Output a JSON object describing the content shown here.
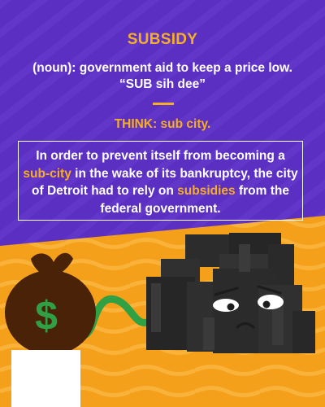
{
  "term": "SUBSIDY",
  "definition_line1": "(noun): government aid to keep a price low.",
  "definition_line2": "“SUB sih dee”",
  "think": "THINK: sub city.",
  "example": {
    "part1": "In order to prevent itself from becoming a ",
    "highlight1": "sub-city",
    "part2": " in the wake of its bankruptcy, the city of Detroit had to rely on ",
    "highlight2": "subsidies",
    "part3": " from the federal government."
  },
  "money_bag_symbol": "$",
  "colors": {
    "purple": "#5a2fc2",
    "orange": "#f6ae24",
    "money_bag": "#4a2208",
    "money_green": "#2fa043",
    "building": "#2a2a2a"
  },
  "icons": [
    "money-bag-icon",
    "sad-building-icon",
    "wavy-pipe-icon"
  ]
}
